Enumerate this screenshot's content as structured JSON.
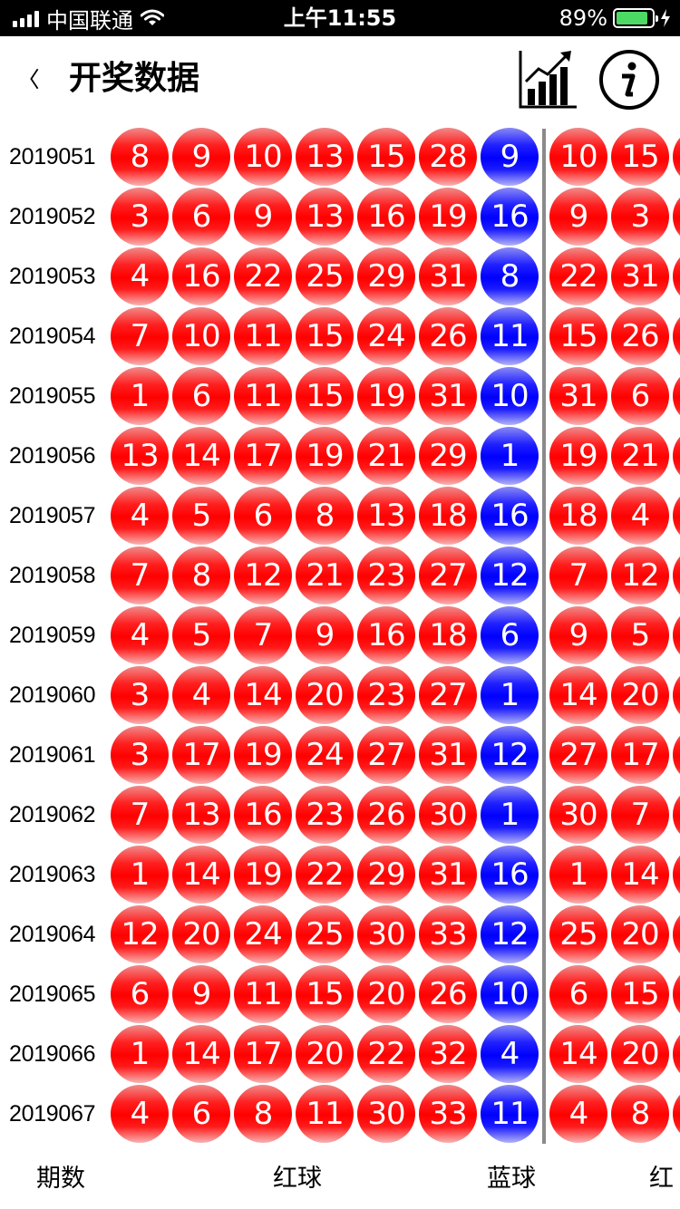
{
  "status_bar": {
    "carrier": "中国联通",
    "time": "上午11:55",
    "battery_percent": "89%",
    "battery_level": 0.89,
    "colors": {
      "battery_fill": "#4cd964",
      "background": "#000000"
    }
  },
  "nav": {
    "back_label": "〈",
    "title": "开奖数据",
    "chart_icon": "bar-chart-trend-icon",
    "info_icon": "info-icon"
  },
  "colors": {
    "red_ball": "#ff0000",
    "blue_ball": "#0000ff",
    "divider": "#8a8a8a"
  },
  "footer": {
    "period_label": "期数",
    "red_label": "红球",
    "blue_label": "蓝球",
    "red_label_cut": "红"
  },
  "draws": [
    {
      "period": "2019051",
      "red": [
        "8",
        "9",
        "10",
        "13",
        "15",
        "28"
      ],
      "blue": "9",
      "extra": [
        "10",
        "15"
      ]
    },
    {
      "period": "2019052",
      "red": [
        "3",
        "6",
        "9",
        "13",
        "16",
        "19"
      ],
      "blue": "16",
      "extra": [
        "9",
        "3"
      ]
    },
    {
      "period": "2019053",
      "red": [
        "4",
        "16",
        "22",
        "25",
        "29",
        "31"
      ],
      "blue": "8",
      "extra": [
        "22",
        "31"
      ]
    },
    {
      "period": "2019054",
      "red": [
        "7",
        "10",
        "11",
        "15",
        "24",
        "26"
      ],
      "blue": "11",
      "extra": [
        "15",
        "26"
      ]
    },
    {
      "period": "2019055",
      "red": [
        "1",
        "6",
        "11",
        "15",
        "19",
        "31"
      ],
      "blue": "10",
      "extra": [
        "31",
        "6"
      ]
    },
    {
      "period": "2019056",
      "red": [
        "13",
        "14",
        "17",
        "19",
        "21",
        "29"
      ],
      "blue": "1",
      "extra": [
        "19",
        "21"
      ]
    },
    {
      "period": "2019057",
      "red": [
        "4",
        "5",
        "6",
        "8",
        "13",
        "18"
      ],
      "blue": "16",
      "extra": [
        "18",
        "4"
      ]
    },
    {
      "period": "2019058",
      "red": [
        "7",
        "8",
        "12",
        "21",
        "23",
        "27"
      ],
      "blue": "12",
      "extra": [
        "7",
        "12"
      ]
    },
    {
      "period": "2019059",
      "red": [
        "4",
        "5",
        "7",
        "9",
        "16",
        "18"
      ],
      "blue": "6",
      "extra": [
        "9",
        "5"
      ]
    },
    {
      "period": "2019060",
      "red": [
        "3",
        "4",
        "14",
        "20",
        "23",
        "27"
      ],
      "blue": "1",
      "extra": [
        "14",
        "20"
      ]
    },
    {
      "period": "2019061",
      "red": [
        "3",
        "17",
        "19",
        "24",
        "27",
        "31"
      ],
      "blue": "12",
      "extra": [
        "27",
        "17"
      ]
    },
    {
      "period": "2019062",
      "red": [
        "7",
        "13",
        "16",
        "23",
        "26",
        "30"
      ],
      "blue": "1",
      "extra": [
        "30",
        "7"
      ]
    },
    {
      "period": "2019063",
      "red": [
        "1",
        "14",
        "19",
        "22",
        "29",
        "31"
      ],
      "blue": "16",
      "extra": [
        "1",
        "14"
      ]
    },
    {
      "period": "2019064",
      "red": [
        "12",
        "20",
        "24",
        "25",
        "30",
        "33"
      ],
      "blue": "12",
      "extra": [
        "25",
        "20"
      ]
    },
    {
      "period": "2019065",
      "red": [
        "6",
        "9",
        "11",
        "15",
        "20",
        "26"
      ],
      "blue": "10",
      "extra": [
        "6",
        "15"
      ]
    },
    {
      "period": "2019066",
      "red": [
        "1",
        "14",
        "17",
        "20",
        "22",
        "32"
      ],
      "blue": "4",
      "extra": [
        "14",
        "20"
      ]
    },
    {
      "period": "2019067",
      "red": [
        "4",
        "6",
        "8",
        "11",
        "30",
        "33"
      ],
      "blue": "11",
      "extra": [
        "4",
        "8"
      ]
    }
  ]
}
